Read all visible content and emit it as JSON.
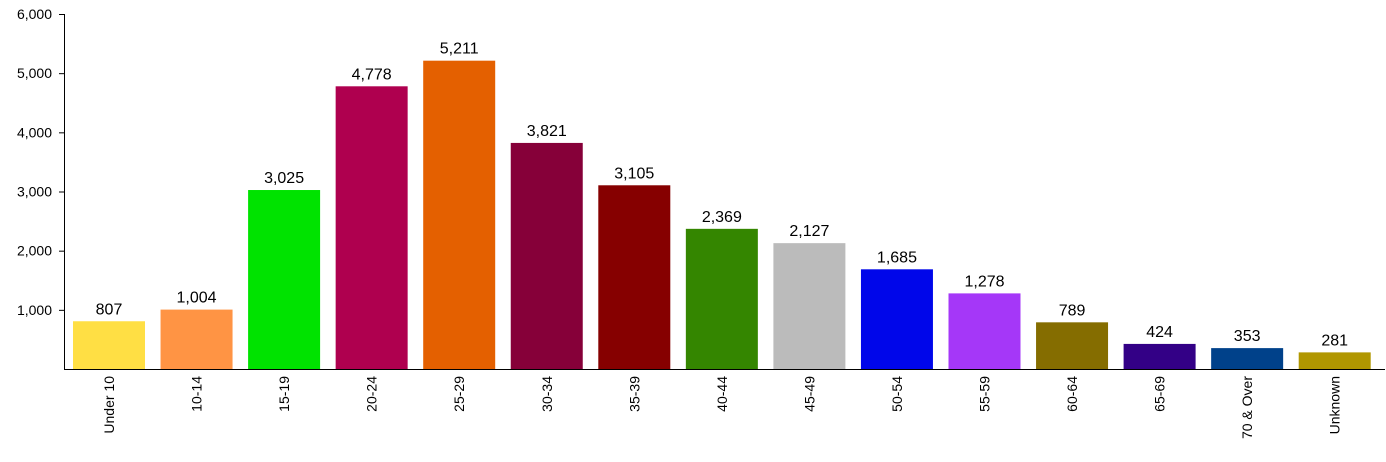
{
  "chart_data": {
    "type": "bar",
    "title": "",
    "xlabel": "",
    "ylabel": "",
    "ylim": [
      0,
      6000
    ],
    "y_ticks": [
      1000,
      2000,
      3000,
      4000,
      5000,
      6000
    ],
    "y_tick_labels": [
      "1,000",
      "2,000",
      "3,000",
      "4,000",
      "5,000",
      "6,000"
    ],
    "grid": false,
    "legend": "none",
    "categories": [
      "Under 10",
      "10-14",
      "15-19",
      "20-24",
      "25-29",
      "30-34",
      "35-39",
      "40-44",
      "45-49",
      "50-54",
      "55-59",
      "60-64",
      "65-69",
      "70 & Over",
      "Unknown"
    ],
    "values": [
      807,
      1004,
      3025,
      4778,
      5211,
      3821,
      3105,
      2369,
      2127,
      1685,
      1278,
      789,
      424,
      353,
      281
    ],
    "value_labels": [
      "807",
      "1,004",
      "3,025",
      "4,778",
      "5,211",
      "3,821",
      "3,105",
      "2,369",
      "2,127",
      "1,685",
      "1,278",
      "789",
      "424",
      "353",
      "281"
    ],
    "colors": [
      "#FFDF44",
      "#FF9444",
      "#00E300",
      "#AF004F",
      "#E46000",
      "#860039",
      "#860000",
      "#348600",
      "#BBBBBB",
      "#0006EA",
      "#A537F8",
      "#856D00",
      "#330086",
      "#00418A",
      "#B19700"
    ]
  }
}
